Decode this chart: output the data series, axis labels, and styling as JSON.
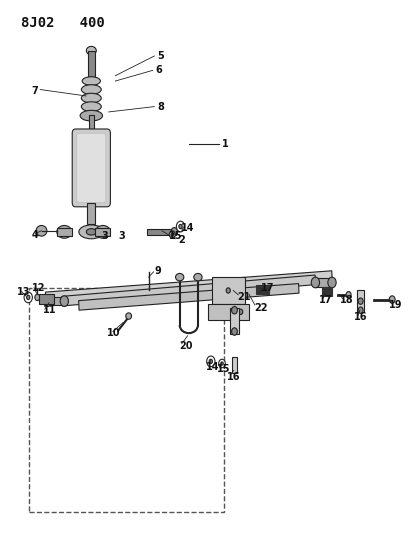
{
  "title": "8J02   400",
  "bg_color": "#ffffff",
  "line_color": "#222222",
  "text_color": "#111111",
  "font_size_title": 10,
  "font_size_label": 7
}
